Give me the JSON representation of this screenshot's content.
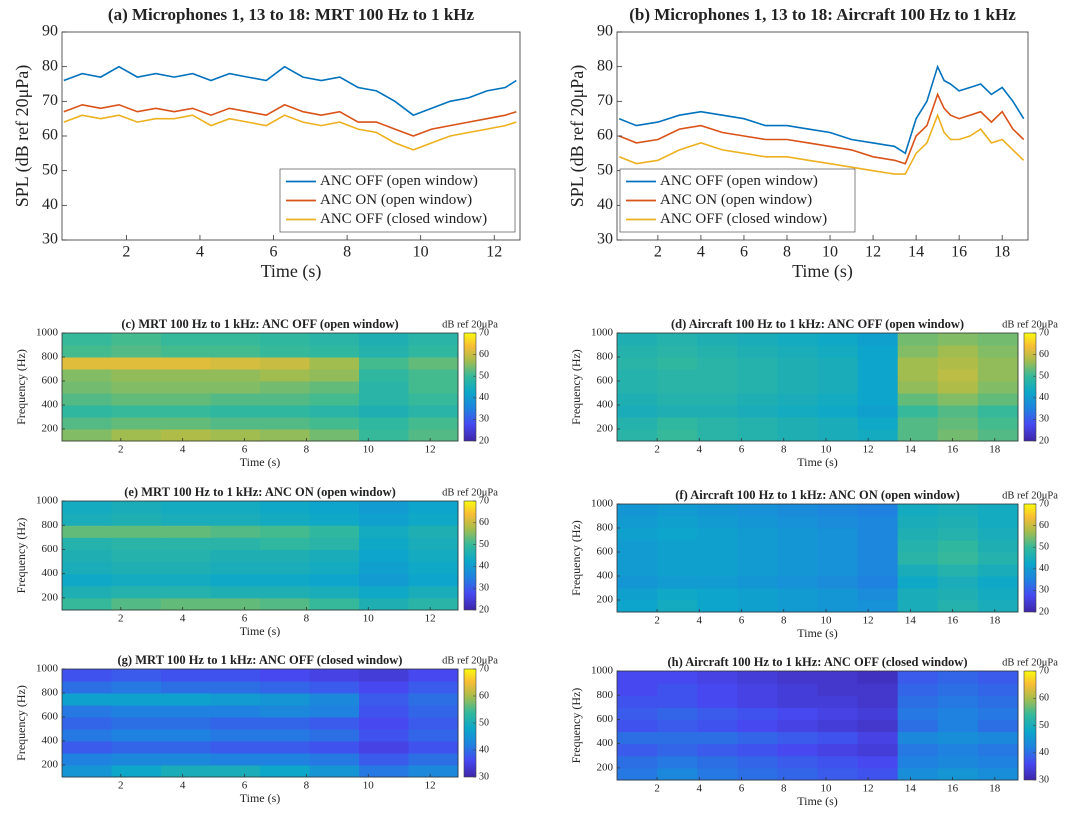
{
  "chart_data": [
    {
      "type": "line",
      "title": "(a) Microphones 1, 13 to 18: MRT 100 Hz to 1 kHz",
      "xlabel": "Time (s)",
      "ylabel": "SPL (dB ref 20μPa)",
      "x": [
        0.3,
        0.8,
        1.3,
        1.8,
        2.3,
        2.8,
        3.3,
        3.8,
        4.3,
        4.8,
        5.3,
        5.8,
        6.3,
        6.8,
        7.3,
        7.8,
        8.3,
        8.8,
        9.3,
        9.8,
        10.3,
        10.8,
        11.3,
        11.8,
        12.3,
        12.6
      ],
      "series": [
        {
          "name": "ANC OFF (open window)",
          "color": "#0072bd",
          "values": [
            76,
            78,
            77,
            80,
            77,
            78,
            77,
            78,
            76,
            78,
            77,
            76,
            80,
            77,
            76,
            77,
            74,
            73,
            70,
            66,
            68,
            70,
            71,
            73,
            74,
            76
          ]
        },
        {
          "name": "ANC ON (open window)",
          "color": "#d95319",
          "values": [
            67,
            69,
            68,
            69,
            67,
            68,
            67,
            68,
            66,
            68,
            67,
            66,
            69,
            67,
            66,
            67,
            64,
            64,
            62,
            60,
            62,
            63,
            64,
            65,
            66,
            67
          ]
        },
        {
          "name": "ANC OFF (closed window)",
          "color": "#edb120",
          "values": [
            64,
            66,
            65,
            66,
            64,
            65,
            65,
            66,
            63,
            65,
            64,
            63,
            66,
            64,
            63,
            64,
            62,
            61,
            58,
            56,
            58,
            60,
            61,
            62,
            63,
            64
          ]
        }
      ],
      "xlim": [
        0.25,
        12.7
      ],
      "xticks": [
        2,
        4,
        6,
        8,
        10,
        12
      ],
      "ylim": [
        30,
        90
      ],
      "yticks": [
        30,
        40,
        50,
        60,
        70,
        80,
        90
      ],
      "legend": "lower right"
    },
    {
      "type": "line",
      "title": "(b) Microphones 1, 13 to 18: Aircraft 100 Hz to 1 kHz",
      "xlabel": "Time (s)",
      "ylabel": "SPL (dB ref 20μPa)",
      "x": [
        0.2,
        1,
        2,
        3,
        4,
        5,
        6,
        7,
        8,
        9,
        10,
        11,
        12,
        13,
        13.5,
        14,
        14.5,
        15,
        15.3,
        15.6,
        16,
        16.5,
        17,
        17.5,
        18,
        18.5,
        19
      ],
      "series": [
        {
          "name": "ANC OFF (open window)",
          "color": "#0072bd",
          "values": [
            65,
            63,
            64,
            66,
            67,
            66,
            65,
            63,
            63,
            62,
            61,
            59,
            58,
            57,
            55,
            65,
            70,
            80,
            76,
            75,
            73,
            74,
            75,
            72,
            74,
            70,
            65
          ]
        },
        {
          "name": "ANC ON (open window)",
          "color": "#d95319",
          "values": [
            60,
            58,
            59,
            62,
            63,
            61,
            60,
            59,
            59,
            58,
            57,
            56,
            54,
            53,
            52,
            60,
            63,
            72,
            68,
            66,
            65,
            66,
            67,
            64,
            67,
            62,
            59
          ]
        },
        {
          "name": "ANC OFF (closed window)",
          "color": "#edb120",
          "values": [
            54,
            52,
            53,
            56,
            58,
            56,
            55,
            54,
            54,
            53,
            52,
            51,
            50,
            49,
            49,
            55,
            58,
            66,
            61,
            59,
            59,
            60,
            62,
            58,
            59,
            56,
            53
          ]
        }
      ],
      "xlim": [
        0.1,
        19.2
      ],
      "xticks": [
        2,
        4,
        6,
        8,
        10,
        12,
        14,
        16,
        18
      ],
      "ylim": [
        30,
        90
      ],
      "yticks": [
        30,
        40,
        50,
        60,
        70,
        80,
        90
      ],
      "legend": "lower left"
    },
    {
      "type": "heatmap",
      "title": "(c) MRT 100 Hz to 1 kHz: ANC OFF (open window)",
      "xlabel": "Time (s)",
      "ylabel": "Frequency (Hz)",
      "colorbar_label": "dB ref 20μPa",
      "colormap": "parula",
      "x": [
        0.9,
        2.5,
        4.1,
        5.7,
        7.3,
        8.9,
        10.5,
        12.1
      ],
      "y": [
        150,
        250,
        350,
        450,
        550,
        650,
        750,
        850,
        950
      ],
      "values": [
        [
          55,
          57,
          58,
          57,
          56,
          54,
          50,
          52
        ],
        [
          52,
          53,
          53,
          52,
          52,
          51,
          49,
          51
        ],
        [
          49,
          50,
          50,
          49,
          49,
          48,
          46,
          48
        ],
        [
          52,
          53,
          53,
          52,
          52,
          51,
          48,
          50
        ],
        [
          54,
          55,
          55,
          55,
          54,
          53,
          48,
          51
        ],
        [
          55,
          56,
          56,
          56,
          57,
          56,
          49,
          51
        ],
        [
          62,
          62,
          62,
          61,
          60,
          57,
          51,
          53
        ],
        [
          51,
          52,
          51,
          51,
          50,
          49,
          47,
          49
        ],
        [
          50,
          51,
          50,
          50,
          49,
          48,
          46,
          48
        ]
      ],
      "xlim": [
        0.1,
        12.9
      ],
      "xticks": [
        2,
        4,
        6,
        8,
        10,
        12
      ],
      "ylim": [
        100,
        1000
      ],
      "yticks": [
        200,
        400,
        600,
        800,
        1000
      ],
      "colorbar_lim": [
        20,
        70
      ],
      "colorbar_ticks": [
        20,
        30,
        40,
        50,
        60,
        70
      ]
    },
    {
      "type": "heatmap",
      "title": "(d) Aircraft 100 Hz to 1 kHz: ANC OFF (open window)",
      "xlabel": "Time (s)",
      "ylabel": "Frequency (Hz)",
      "colorbar_label": "dB ref 20μPa",
      "colormap": "parula",
      "x": [
        1.05,
        2.95,
        4.85,
        6.75,
        8.65,
        10.55,
        12.45,
        14.35,
        16.25,
        18.15
      ],
      "y": [
        150,
        250,
        350,
        450,
        550,
        650,
        750,
        850,
        950
      ],
      "values": [
        [
          48,
          50,
          48,
          47,
          46,
          45,
          44,
          52,
          54,
          52
        ],
        [
          47,
          49,
          48,
          47,
          46,
          45,
          43,
          52,
          53,
          51
        ],
        [
          45,
          46,
          46,
          45,
          44,
          43,
          41,
          50,
          52,
          50
        ],
        [
          46,
          47,
          47,
          46,
          45,
          44,
          42,
          53,
          55,
          53
        ],
        [
          47,
          48,
          48,
          47,
          46,
          45,
          42,
          56,
          58,
          55
        ],
        [
          47,
          48,
          48,
          47,
          46,
          45,
          42,
          57,
          59,
          56
        ],
        [
          48,
          49,
          48,
          47,
          46,
          45,
          42,
          57,
          58,
          56
        ],
        [
          47,
          48,
          47,
          46,
          45,
          44,
          42,
          55,
          57,
          55
        ],
        [
          46,
          47,
          46,
          45,
          44,
          43,
          41,
          54,
          55,
          54
        ]
      ],
      "xlim": [
        0.1,
        19.1
      ],
      "xticks": [
        2,
        4,
        6,
        8,
        10,
        12,
        14,
        16,
        18
      ],
      "ylim": [
        100,
        1000
      ],
      "yticks": [
        200,
        400,
        600,
        800,
        1000
      ],
      "colorbar_lim": [
        20,
        70
      ],
      "colorbar_ticks": [
        20,
        30,
        40,
        50,
        60,
        70
      ]
    },
    {
      "type": "heatmap",
      "title": "(e) MRT 100 Hz to 1 kHz: ANC ON (open window)",
      "xlabel": "Time (s)",
      "ylabel": "Frequency (Hz)",
      "colorbar_label": "dB ref 20μPa",
      "colormap": "parula",
      "x": [
        0.9,
        2.5,
        4.1,
        5.7,
        7.3,
        8.9,
        10.5,
        12.1
      ],
      "y": [
        150,
        250,
        350,
        450,
        550,
        650,
        750,
        850,
        950
      ],
      "values": [
        [
          50,
          52,
          53,
          53,
          52,
          50,
          46,
          48
        ],
        [
          46,
          47,
          47,
          46,
          46,
          45,
          43,
          45
        ],
        [
          43,
          44,
          44,
          43,
          43,
          42,
          40,
          42
        ],
        [
          45,
          46,
          46,
          45,
          45,
          44,
          41,
          43
        ],
        [
          46,
          47,
          47,
          46,
          46,
          45,
          42,
          44
        ],
        [
          47,
          48,
          48,
          48,
          49,
          48,
          43,
          45
        ],
        [
          53,
          53,
          53,
          52,
          51,
          49,
          44,
          46
        ],
        [
          45,
          46,
          45,
          45,
          44,
          43,
          41,
          43
        ],
        [
          44,
          45,
          44,
          44,
          43,
          42,
          40,
          42
        ]
      ],
      "xlim": [
        0.1,
        12.9
      ],
      "xticks": [
        2,
        4,
        6,
        8,
        10,
        12
      ],
      "ylim": [
        100,
        1000
      ],
      "yticks": [
        200,
        400,
        600,
        800,
        1000
      ],
      "colorbar_lim": [
        20,
        70
      ],
      "colorbar_ticks": [
        20,
        30,
        40,
        50,
        60,
        70
      ]
    },
    {
      "type": "heatmap",
      "title": "(f) Aircraft 100 Hz to 1 kHz: ANC ON (open window)",
      "xlabel": "Time (s)",
      "ylabel": "Frequency (Hz)",
      "colorbar_label": "dB ref 20μPa",
      "colormap": "parula",
      "x": [
        1.05,
        2.95,
        4.85,
        6.75,
        8.65,
        10.55,
        12.45,
        14.35,
        16.25,
        18.15
      ],
      "y": [
        150,
        250,
        350,
        450,
        550,
        650,
        750,
        850,
        950
      ],
      "values": [
        [
          42,
          44,
          42,
          41,
          40,
          39,
          38,
          45,
          47,
          45
        ],
        [
          41,
          43,
          42,
          41,
          40,
          39,
          37,
          45,
          46,
          44
        ],
        [
          39,
          40,
          40,
          39,
          38,
          37,
          35,
          43,
          45,
          43
        ],
        [
          40,
          41,
          41,
          40,
          39,
          38,
          36,
          45,
          47,
          45
        ],
        [
          40,
          41,
          41,
          40,
          39,
          38,
          36,
          48,
          50,
          47
        ],
        [
          40,
          41,
          41,
          40,
          39,
          38,
          36,
          47,
          49,
          46
        ],
        [
          41,
          42,
          41,
          40,
          39,
          38,
          36,
          46,
          47,
          45
        ],
        [
          40,
          41,
          40,
          39,
          38,
          37,
          36,
          45,
          46,
          44
        ],
        [
          39,
          40,
          39,
          38,
          37,
          36,
          35,
          44,
          45,
          44
        ]
      ],
      "xlim": [
        0.1,
        19.1
      ],
      "xticks": [
        2,
        4,
        6,
        8,
        10,
        12,
        14,
        16,
        18
      ],
      "ylim": [
        100,
        1000
      ],
      "yticks": [
        200,
        400,
        600,
        800,
        1000
      ],
      "colorbar_lim": [
        20,
        70
      ],
      "colorbar_ticks": [
        20,
        30,
        40,
        50,
        60,
        70
      ]
    },
    {
      "type": "heatmap",
      "title": "(g) MRT 100 Hz to 1 kHz: ANC OFF (closed window)",
      "xlabel": "Time (s)",
      "ylabel": "Frequency (Hz)",
      "colorbar_label": "dB ref 20μPa",
      "colormap": "parula",
      "x": [
        0.9,
        2.5,
        4.1,
        5.7,
        7.3,
        8.9,
        10.5,
        12.1
      ],
      "y": [
        150,
        250,
        350,
        450,
        550,
        650,
        750,
        850,
        950
      ],
      "values": [
        [
          45,
          48,
          50,
          50,
          48,
          45,
          41,
          43
        ],
        [
          42,
          43,
          43,
          42,
          42,
          41,
          38,
          40
        ],
        [
          38,
          39,
          39,
          38,
          38,
          37,
          35,
          37
        ],
        [
          41,
          42,
          42,
          41,
          41,
          40,
          37,
          39
        ],
        [
          39,
          40,
          40,
          39,
          39,
          38,
          36,
          38
        ],
        [
          41,
          42,
          42,
          42,
          43,
          42,
          37,
          39
        ],
        [
          47,
          47,
          47,
          46,
          45,
          43,
          38,
          40
        ],
        [
          40,
          41,
          40,
          40,
          39,
          38,
          36,
          38
        ],
        [
          37,
          38,
          37,
          37,
          36,
          35,
          34,
          36
        ]
      ],
      "xlim": [
        0.1,
        12.9
      ],
      "xticks": [
        2,
        4,
        6,
        8,
        10,
        12
      ],
      "ylim": [
        100,
        1000
      ],
      "yticks": [
        200,
        400,
        600,
        800,
        1000
      ],
      "colorbar_lim": [
        30,
        70
      ],
      "colorbar_ticks": [
        30,
        40,
        50,
        60,
        70
      ]
    },
    {
      "type": "heatmap",
      "title": "(h) Aircraft 100 Hz to 1 kHz: ANC OFF (closed window)",
      "xlabel": "Time (s)",
      "ylabel": "Frequency (Hz)",
      "colorbar_label": "dB ref 20μPa",
      "colormap": "parula",
      "x": [
        1.05,
        2.95,
        4.85,
        6.75,
        8.65,
        10.55,
        12.45,
        14.35,
        16.25,
        18.15
      ],
      "y": [
        150,
        250,
        350,
        450,
        550,
        650,
        750,
        850,
        950
      ],
      "values": [
        [
          41,
          43,
          41,
          40,
          39,
          38,
          37,
          44,
          45,
          44
        ],
        [
          40,
          41,
          40,
          39,
          38,
          37,
          36,
          42,
          43,
          42
        ],
        [
          38,
          39,
          38,
          37,
          36,
          35,
          34,
          41,
          42,
          41
        ],
        [
          40,
          40,
          40,
          39,
          38,
          37,
          35,
          43,
          44,
          43
        ],
        [
          37,
          38,
          37,
          36,
          35,
          34,
          33,
          40,
          42,
          40
        ],
        [
          38,
          39,
          38,
          37,
          36,
          35,
          34,
          41,
          42,
          41
        ],
        [
          37,
          37,
          36,
          35,
          34,
          34,
          33,
          40,
          41,
          40
        ],
        [
          36,
          37,
          36,
          35,
          34,
          33,
          33,
          39,
          40,
          39
        ],
        [
          36,
          36,
          35,
          34,
          33,
          33,
          32,
          38,
          39,
          38
        ]
      ],
      "xlim": [
        0.1,
        19.1
      ],
      "xticks": [
        2,
        4,
        6,
        8,
        10,
        12,
        14,
        16,
        18
      ],
      "ylim": [
        100,
        1000
      ],
      "yticks": [
        200,
        400,
        600,
        800,
        1000
      ],
      "colorbar_lim": [
        30,
        70
      ],
      "colorbar_ticks": [
        30,
        40,
        50,
        60,
        70
      ]
    }
  ]
}
